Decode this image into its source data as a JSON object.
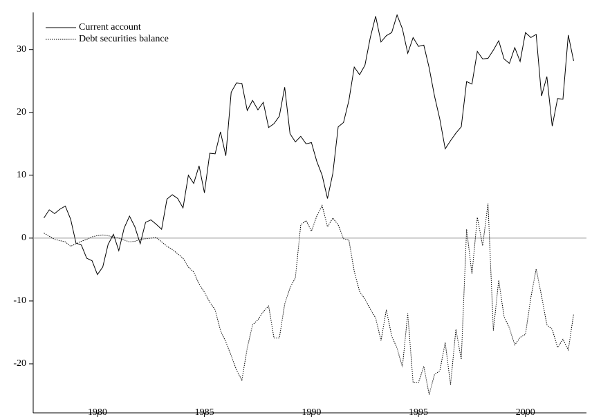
{
  "chart_data": {
    "type": "line",
    "x": [
      1977.5,
      1977.75,
      1978,
      1978.25,
      1978.5,
      1978.75,
      1979,
      1979.25,
      1979.5,
      1979.75,
      1980,
      1980.25,
      1980.5,
      1980.75,
      1981,
      1981.25,
      1981.5,
      1981.75,
      1982,
      1982.25,
      1982.5,
      1982.75,
      1983,
      1983.25,
      1983.5,
      1983.75,
      1984,
      1984.25,
      1984.5,
      1984.75,
      1985,
      1985.25,
      1985.5,
      1985.75,
      1986,
      1986.25,
      1986.5,
      1986.75,
      1987,
      1987.25,
      1987.5,
      1987.75,
      1988,
      1988.25,
      1988.5,
      1988.75,
      1989,
      1989.25,
      1989.5,
      1989.75,
      1990,
      1990.25,
      1990.5,
      1990.75,
      1991,
      1991.25,
      1991.5,
      1991.75,
      1992,
      1992.25,
      1992.5,
      1992.75,
      1993,
      1993.25,
      1993.5,
      1993.75,
      1994,
      1994.25,
      1994.5,
      1994.75,
      1995,
      1995.25,
      1995.5,
      1995.75,
      1996,
      1996.25,
      1996.5,
      1996.75,
      1997,
      1997.25,
      1997.5,
      1997.75,
      1998,
      1998.25,
      1998.5,
      1998.75,
      1999,
      1999.25,
      1999.5,
      1999.75,
      2000,
      2000.25,
      2000.5,
      2000.75,
      2001,
      2001.25,
      2001.5,
      2001.75,
      2002,
      2002.25
    ],
    "series": [
      {
        "name": "Current account",
        "color": "#000000",
        "dash": "solid",
        "values": [
          3.2,
          4.5,
          3.9,
          4.6,
          5.1,
          3.0,
          -0.8,
          -1.1,
          -3.2,
          -3.6,
          -5.8,
          -4.6,
          -1.0,
          0.6,
          -2.0,
          1.6,
          3.5,
          1.8,
          -0.9,
          2.5,
          2.9,
          2.2,
          1.4,
          6.2,
          6.9,
          6.3,
          4.8,
          10.0,
          8.7,
          11.5,
          7.2,
          13.5,
          13.4,
          16.9,
          13.1,
          23.2,
          24.7,
          24.6,
          20.3,
          21.9,
          20.4,
          21.6,
          17.6,
          18.2,
          19.4,
          24.0,
          16.6,
          15.3,
          16.2,
          15.0,
          15.2,
          12.2,
          10.0,
          6.3,
          10.3,
          17.7,
          18.4,
          21.9,
          27.2,
          26.0,
          27.5,
          31.9,
          35.3,
          31.2,
          32.2,
          32.7,
          35.5,
          33.3,
          29.4,
          31.9,
          30.5,
          30.7,
          27.1,
          22.6,
          18.9,
          14.2,
          15.5,
          16.7,
          17.7,
          24.9,
          24.5,
          29.7,
          28.5,
          28.6,
          29.9,
          31.4,
          28.5,
          27.8,
          30.3,
          28.1,
          32.7,
          31.9,
          32.4,
          22.6,
          25.7,
          17.8,
          22.2,
          22.1,
          32.3,
          28.2
        ]
      },
      {
        "name": "Debt securities balance",
        "color": "#000000",
        "dash": "dotted",
        "values": [
          0.8,
          0.3,
          -0.2,
          -0.4,
          -0.6,
          -1.3,
          -0.9,
          -0.5,
          -0.2,
          0.2,
          0.4,
          0.5,
          0.4,
          0.1,
          0.0,
          -0.3,
          -0.6,
          -0.5,
          -0.2,
          -0.1,
          0.0,
          0.1,
          -0.6,
          -1.3,
          -1.8,
          -2.5,
          -3.2,
          -4.6,
          -5.4,
          -7.3,
          -8.6,
          -10.2,
          -11.4,
          -14.7,
          -16.5,
          -18.7,
          -21.0,
          -22.6,
          -17.5,
          -13.8,
          -13.0,
          -11.7,
          -10.8,
          -15.9,
          -15.9,
          -10.5,
          -7.9,
          -6.3,
          2.1,
          2.8,
          1.1,
          3.5,
          5.2,
          1.8,
          3.2,
          2.1,
          -0.1,
          -0.3,
          -5.3,
          -8.5,
          -9.7,
          -11.3,
          -12.7,
          -16.3,
          -11.4,
          -15.6,
          -17.5,
          -20.5,
          -12.0,
          -23.0,
          -23.0,
          -20.4,
          -24.9,
          -21.7,
          -21.1,
          -16.6,
          -23.3,
          -14.5,
          -19.3,
          1.4,
          -5.7,
          3.3,
          -1.2,
          5.5,
          -14.7,
          -6.7,
          -12.5,
          -14.3,
          -17.0,
          -15.8,
          -15.3,
          -9.5,
          -4.9,
          -9.2,
          -13.8,
          -14.5,
          -17.4,
          -16.1,
          -17.8,
          -12.1
        ]
      }
    ],
    "xlim": [
      1977,
      2002.85
    ],
    "xticks": [
      1980,
      1985,
      1990,
      1995,
      2000
    ],
    "ylim": [
      -27.8,
      35.9
    ],
    "yticks": [
      -20,
      -10,
      0,
      10,
      20,
      30
    ],
    "zero_line": true,
    "legend": "upper left"
  }
}
